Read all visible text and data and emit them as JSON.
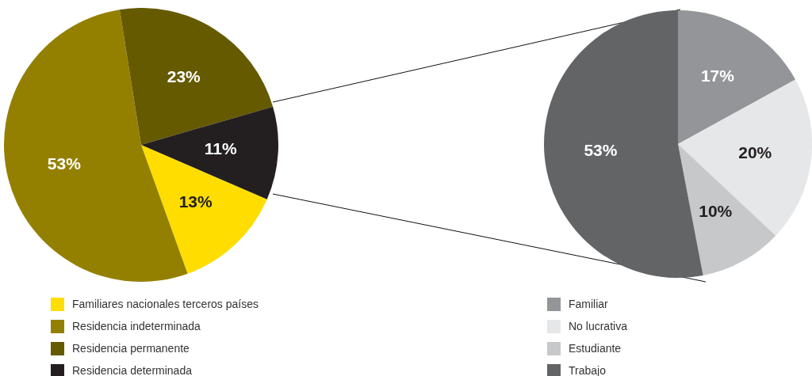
{
  "chart_data": [
    {
      "type": "pie",
      "categories": [
        "Familiares nacionales terceros países",
        "Residencia indeterminada",
        "Residencia permanente",
        "Residencia determinada"
      ],
      "values": [
        13,
        53,
        23,
        11
      ],
      "value_labels": [
        "13%",
        "53%",
        "23%",
        "11%"
      ],
      "colors": [
        "#ffdd00",
        "#948000",
        "#655a00",
        "#231f20"
      ],
      "legend": "bottom"
    },
    {
      "type": "pie",
      "categories": [
        "Familiar",
        "No lucrativa",
        "Estudiante",
        "Trabajo"
      ],
      "values": [
        17,
        20,
        10,
        53
      ],
      "value_labels": [
        "17%",
        "20%",
        "10%",
        "53%"
      ],
      "colors": [
        "#939598",
        "#e6e7e8",
        "#c7c8ca",
        "#636466"
      ],
      "legend": "bottom"
    }
  ]
}
